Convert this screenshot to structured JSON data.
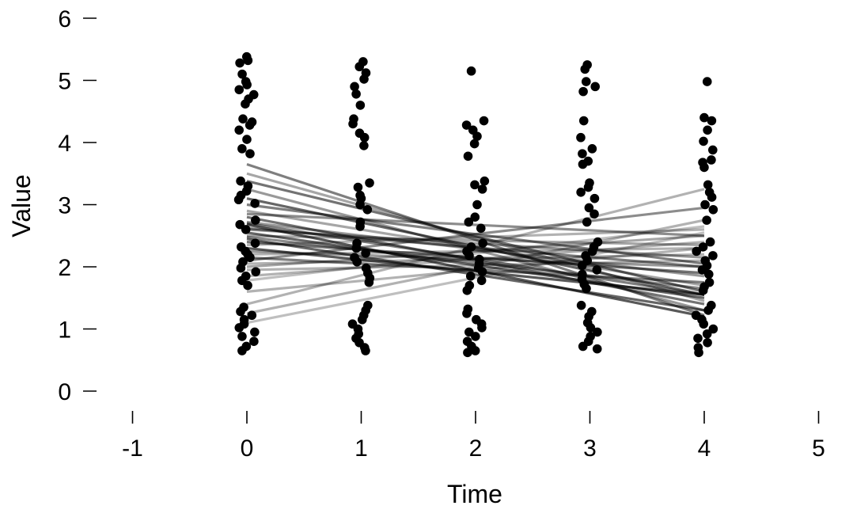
{
  "chart_data": {
    "type": "scatter",
    "title": "",
    "xlabel": "Time",
    "ylabel": "Value",
    "xlim": [
      -1,
      5
    ],
    "ylim": [
      0,
      6
    ],
    "x_ticks": [
      "-1",
      "0",
      "1",
      "2",
      "3",
      "4",
      "5"
    ],
    "y_ticks": [
      "0",
      "1",
      "2",
      "3",
      "4",
      "5",
      "6"
    ],
    "grid": false,
    "legend": "none",
    "point_color": "#000000",
    "line_color": "#000000",
    "points": [
      {
        "x": 0,
        "values": [
          5.38,
          5.32,
          5.28,
          5.1,
          4.98,
          4.93,
          4.85,
          4.77,
          4.7,
          4.62,
          4.38,
          4.33,
          4.28,
          4.2,
          4.05,
          3.9,
          3.82,
          3.38,
          3.3,
          3.22,
          3.15,
          3.08,
          3.02,
          2.75,
          2.68,
          2.6,
          2.38,
          2.32,
          2.25,
          2.2,
          2.15,
          2.08,
          1.98,
          1.92,
          1.85,
          1.78,
          1.7,
          1.35,
          1.28,
          1.22,
          1.15,
          1.08,
          1.02,
          0.95,
          0.88,
          0.8,
          0.72,
          0.65
        ]
      },
      {
        "x": 1,
        "values": [
          5.3,
          5.22,
          5.12,
          5.02,
          4.9,
          4.78,
          4.6,
          4.38,
          4.3,
          4.15,
          4.08,
          3.95,
          3.35,
          3.28,
          3.15,
          3.1,
          3.0,
          2.92,
          2.72,
          2.65,
          2.38,
          2.3,
          2.22,
          2.15,
          2.08,
          1.98,
          1.9,
          1.82,
          1.75,
          1.38,
          1.3,
          1.22,
          1.15,
          1.08,
          1.0,
          0.92,
          0.85,
          0.78,
          0.7,
          0.65
        ]
      },
      {
        "x": 2,
        "values": [
          5.15,
          4.35,
          4.28,
          4.2,
          4.1,
          3.98,
          3.78,
          3.38,
          3.32,
          3.25,
          3.0,
          2.8,
          2.72,
          2.62,
          2.38,
          2.32,
          2.25,
          2.18,
          2.12,
          2.05,
          1.98,
          1.92,
          1.85,
          1.78,
          1.7,
          1.62,
          1.32,
          1.25,
          1.15,
          1.08,
          1.02,
          0.95,
          0.88,
          0.8,
          0.72,
          0.65,
          0.62
        ]
      },
      {
        "x": 3,
        "values": [
          5.25,
          5.18,
          4.98,
          4.9,
          4.82,
          4.35,
          4.08,
          3.9,
          3.82,
          3.7,
          3.65,
          3.35,
          3.28,
          3.2,
          3.1,
          2.95,
          2.85,
          2.72,
          2.4,
          2.32,
          2.25,
          2.18,
          2.1,
          2.02,
          1.95,
          1.88,
          1.8,
          1.72,
          1.65,
          1.38,
          1.28,
          1.2,
          1.1,
          1.02,
          0.95,
          0.88,
          0.8,
          0.72,
          0.68
        ]
      },
      {
        "x": 4,
        "values": [
          4.98,
          4.4,
          4.35,
          4.2,
          4.02,
          3.88,
          3.72,
          3.68,
          3.6,
          3.32,
          3.2,
          3.12,
          3.0,
          2.92,
          2.75,
          2.4,
          2.32,
          2.25,
          2.18,
          2.1,
          2.02,
          1.95,
          1.88,
          1.75,
          1.68,
          1.62,
          1.38,
          1.3,
          1.22,
          1.15,
          1.08,
          1.0,
          0.92,
          0.85,
          0.78,
          0.7,
          0.62
        ]
      }
    ],
    "lines": [
      {
        "y0": 3.65,
        "y4": 1.22,
        "opacity": 0.5
      },
      {
        "y0": 3.5,
        "y4": 1.45,
        "opacity": 0.35
      },
      {
        "y0": 3.38,
        "y4": 1.6,
        "opacity": 0.55
      },
      {
        "y0": 3.25,
        "y4": 1.3,
        "opacity": 0.4
      },
      {
        "y0": 3.1,
        "y4": 1.55,
        "opacity": 0.6
      },
      {
        "y0": 3.0,
        "y4": 2.05,
        "opacity": 0.5
      },
      {
        "y0": 2.9,
        "y4": 1.7,
        "opacity": 0.35
      },
      {
        "y0": 2.85,
        "y4": 2.5,
        "opacity": 0.45
      },
      {
        "y0": 2.8,
        "y4": 1.4,
        "opacity": 0.55
      },
      {
        "y0": 2.72,
        "y4": 1.85,
        "opacity": 0.4
      },
      {
        "y0": 2.68,
        "y4": 1.2,
        "opacity": 0.65
      },
      {
        "y0": 2.62,
        "y4": 2.0,
        "opacity": 0.5
      },
      {
        "y0": 2.55,
        "y4": 1.5,
        "opacity": 0.6
      },
      {
        "y0": 2.5,
        "y4": 2.35,
        "opacity": 0.35
      },
      {
        "y0": 2.48,
        "y4": 1.65,
        "opacity": 0.45
      },
      {
        "y0": 2.4,
        "y4": 1.9,
        "opacity": 0.55
      },
      {
        "y0": 2.35,
        "y4": 2.6,
        "opacity": 0.3
      },
      {
        "y0": 2.3,
        "y4": 1.55,
        "opacity": 0.65
      },
      {
        "y0": 2.25,
        "y4": 2.0,
        "opacity": 0.4
      },
      {
        "y0": 2.2,
        "y4": 2.3,
        "opacity": 0.3
      },
      {
        "y0": 2.15,
        "y4": 1.75,
        "opacity": 0.5
      },
      {
        "y0": 2.1,
        "y4": 2.95,
        "opacity": 0.45
      },
      {
        "y0": 2.05,
        "y4": 2.2,
        "opacity": 0.3
      },
      {
        "y0": 2.0,
        "y4": 2.5,
        "opacity": 0.35
      },
      {
        "y0": 1.95,
        "y4": 2.1,
        "opacity": 0.3
      },
      {
        "y0": 1.85,
        "y4": 2.4,
        "opacity": 0.3
      },
      {
        "y0": 1.78,
        "y4": 2.65,
        "opacity": 0.25
      },
      {
        "y0": 1.6,
        "y4": 2.3,
        "opacity": 0.3
      },
      {
        "y0": 1.4,
        "y4": 3.25,
        "opacity": 0.3
      },
      {
        "y0": 1.25,
        "y4": 2.75,
        "opacity": 0.3
      },
      {
        "y0": 1.1,
        "y4": 2.55,
        "opacity": 0.25
      },
      {
        "y0": 2.45,
        "y4": 1.3,
        "opacity": 0.6
      },
      {
        "y0": 2.6,
        "y4": 2.15,
        "opacity": 0.4
      },
      {
        "y0": 2.7,
        "y4": 1.55,
        "opacity": 0.5
      }
    ]
  }
}
